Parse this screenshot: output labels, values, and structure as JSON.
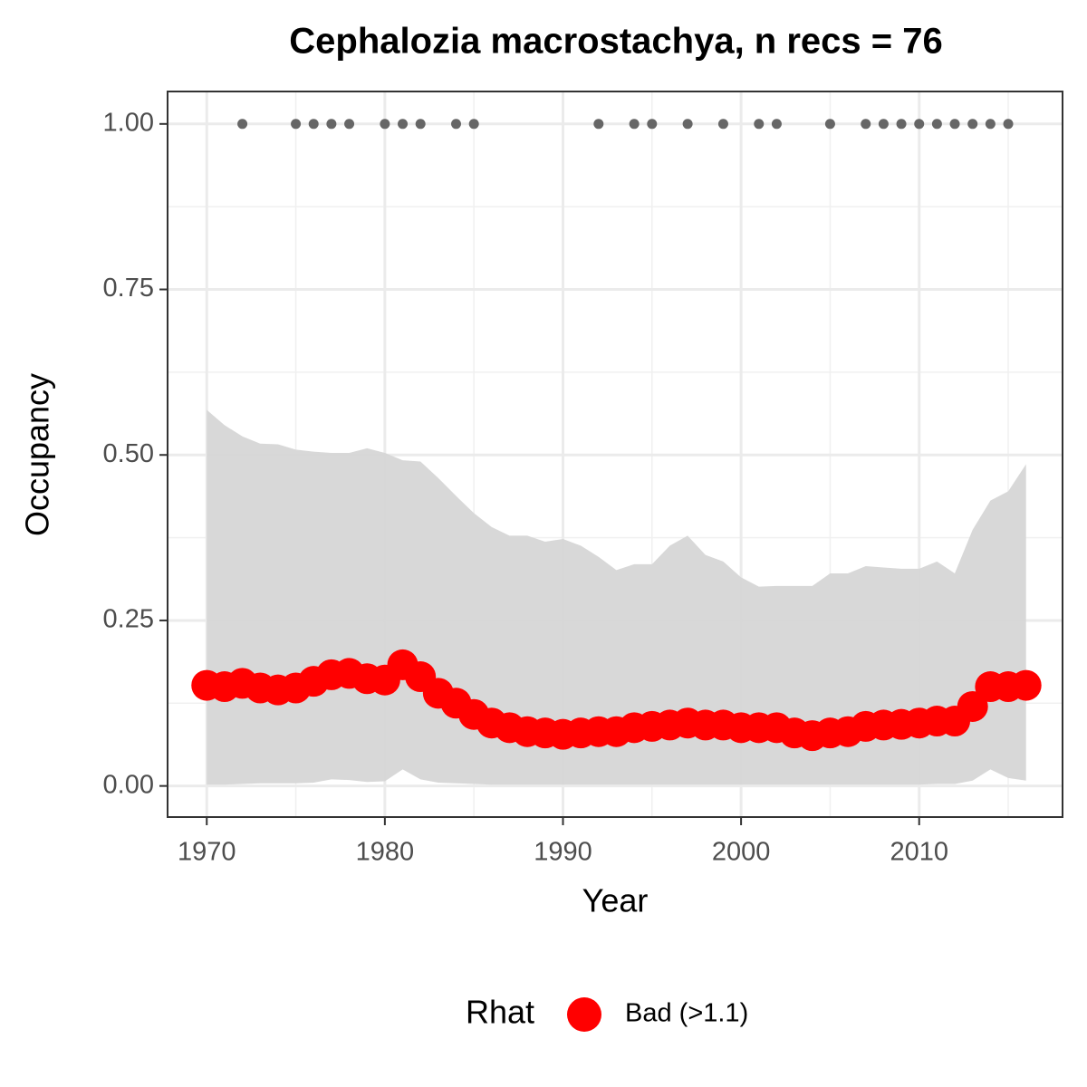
{
  "chart_data": {
    "type": "scatter",
    "title": "Cephalozia macrostachya, n recs = 76",
    "x_label": "Year",
    "y_label": "Occupancy",
    "xlim": [
      1967.8,
      2018.05
    ],
    "ylim": [
      -0.047,
      1.049
    ],
    "xticks": [
      1970,
      1980,
      1990,
      2000,
      2010
    ],
    "yticks": [
      {
        "value": 0,
        "label": "0.00"
      },
      {
        "value": 0.25,
        "label": "0.25"
      },
      {
        "value": 0.5,
        "label": "0.50"
      },
      {
        "value": 0.75,
        "label": "0.75"
      },
      {
        "value": 1,
        "label": "1.00"
      }
    ],
    "xminor": [
      1975,
      1985,
      1995,
      2005,
      2015
    ],
    "yminor": [
      0.125,
      0.375,
      0.625,
      0.875
    ],
    "grid": true,
    "legend_title": "Rhat",
    "legend_position": "bottom",
    "x": [
      1970,
      1971,
      1972,
      1973,
      1974,
      1975,
      1976,
      1977,
      1978,
      1979,
      1980,
      1981,
      1982,
      1983,
      1984,
      1985,
      1986,
      1987,
      1988,
      1989,
      1990,
      1991,
      1992,
      1993,
      1994,
      1995,
      1996,
      1997,
      1998,
      1999,
      2000,
      2001,
      2002,
      2003,
      2004,
      2005,
      2006,
      2007,
      2008,
      2009,
      2010,
      2011,
      2012,
      2013,
      2014,
      2015,
      2016
    ],
    "ribbon": {
      "color": "#d6d6d6",
      "upper": [
        0.568,
        0.545,
        0.528,
        0.517,
        0.516,
        0.508,
        0.505,
        0.503,
        0.503,
        0.51,
        0.503,
        0.492,
        0.49,
        0.465,
        0.438,
        0.412,
        0.391,
        0.378,
        0.378,
        0.369,
        0.373,
        0.363,
        0.346,
        0.326,
        0.335,
        0.335,
        0.363,
        0.378,
        0.349,
        0.339,
        0.315,
        0.301,
        0.302,
        0.302,
        0.302,
        0.321,
        0.321,
        0.332,
        0.33,
        0.328,
        0.328,
        0.339,
        0.321,
        0.387,
        0.431,
        0.445,
        0.486
      ],
      "lower": [
        0.002,
        0.002,
        0.003,
        0.004,
        0.004,
        0.004,
        0.005,
        0.01,
        0.009,
        0.006,
        0.007,
        0.025,
        0.01,
        0.005,
        0.004,
        0.003,
        0.002,
        0.002,
        0.002,
        0.002,
        0.002,
        0.002,
        0.002,
        0.002,
        0.002,
        0.002,
        0.002,
        0.002,
        0.002,
        0.002,
        0.002,
        0.002,
        0.002,
        0.002,
        0.002,
        0.002,
        0.002,
        0.002,
        0.002,
        0.002,
        0.002,
        0.003,
        0.003,
        0.008,
        0.025,
        0.012,
        0.008
      ]
    },
    "series": [
      {
        "name": "Bad (>1.1)",
        "color": "#ff0000",
        "values": [
          0.152,
          0.15,
          0.155,
          0.148,
          0.145,
          0.148,
          0.158,
          0.168,
          0.17,
          0.162,
          0.16,
          0.183,
          0.165,
          0.14,
          0.125,
          0.108,
          0.095,
          0.088,
          0.082,
          0.08,
          0.078,
          0.08,
          0.082,
          0.082,
          0.088,
          0.09,
          0.092,
          0.095,
          0.092,
          0.092,
          0.088,
          0.088,
          0.088,
          0.08,
          0.076,
          0.08,
          0.082,
          0.09,
          0.092,
          0.093,
          0.095,
          0.098,
          0.098,
          0.12,
          0.15,
          0.15,
          0.152
        ]
      }
    ],
    "detections": {
      "color": "#666666",
      "x": [
        1972,
        1975,
        1976,
        1977,
        1978,
        1980,
        1981,
        1982,
        1984,
        1985,
        1992,
        1994,
        1995,
        1997,
        1999,
        2001,
        2002,
        2005,
        2007,
        2008,
        2009,
        2010,
        2011,
        2012,
        2013,
        2014,
        2015
      ],
      "values": [
        1,
        1,
        1,
        1,
        1,
        1,
        1,
        1,
        1,
        1,
        1,
        1,
        1,
        1,
        1,
        1,
        1,
        1,
        1,
        1,
        1,
        1,
        1,
        1,
        1,
        1,
        1
      ]
    }
  }
}
